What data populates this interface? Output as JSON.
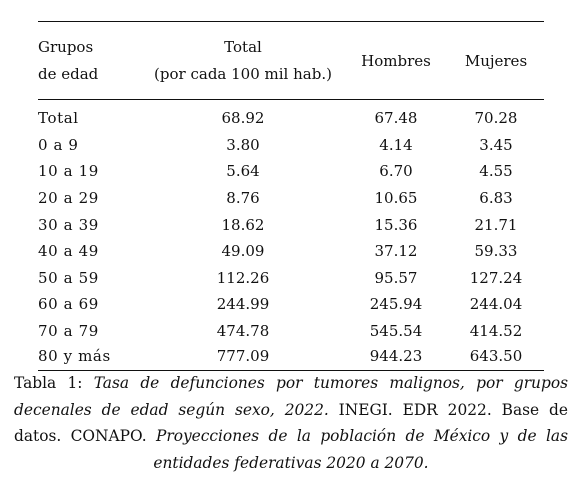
{
  "table": {
    "headers": {
      "groups_line1": "Grupos",
      "groups_line2": "de edad",
      "total_line1": "Total",
      "total_line2": "(por cada 100 mil hab.)",
      "men": "Hombres",
      "women": "Mujeres"
    },
    "rows": [
      {
        "group": "Total",
        "total": "68.92",
        "men": "67.48",
        "women": "70.28"
      },
      {
        "group": "0 a 9",
        "total": "3.80",
        "men": "4.14",
        "women": "3.45"
      },
      {
        "group": "10 a 19",
        "total": "5.64",
        "men": "6.70",
        "women": "4.55"
      },
      {
        "group": "20 a 29",
        "total": "8.76",
        "men": "10.65",
        "women": "6.83"
      },
      {
        "group": "30 a 39",
        "total": "18.62",
        "men": "15.36",
        "women": "21.71"
      },
      {
        "group": "40 a 49",
        "total": "49.09",
        "men": "37.12",
        "women": "59.33"
      },
      {
        "group": "50 a 59",
        "total": "112.26",
        "men": "95.57",
        "women": "127.24"
      },
      {
        "group": "60 a 69",
        "total": "244.99",
        "men": "245.94",
        "women": "244.04"
      },
      {
        "group": "70 a 79",
        "total": "474.78",
        "men": "545.54",
        "women": "414.52"
      },
      {
        "group": "80 y más",
        "total": "777.09",
        "men": "944.23",
        "women": "643.50"
      }
    ]
  },
  "caption": {
    "label": "Tabla 1:",
    "title": "Tasa de defunciones por tumores malignos, por grupos decenales de edad según sexo, 2022.",
    "source1": "INEGI. EDR 2022. Base de datos. CONAPO.",
    "source2": "Proyecciones de la población de México y de las entidades federativas 2020 a 2070."
  }
}
